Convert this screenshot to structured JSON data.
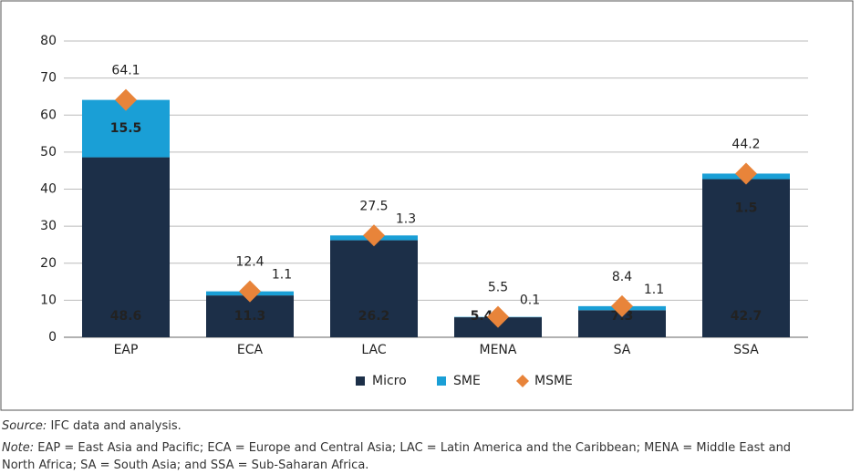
{
  "chart_data": {
    "type": "bar",
    "categories": [
      "EAP",
      "ECA",
      "LAC",
      "MENA",
      "SA",
      "SSA"
    ],
    "series": [
      {
        "name": "Micro",
        "color": "#1c2f48",
        "values": [
          48.6,
          11.3,
          26.2,
          5.4,
          7.3,
          42.7
        ]
      },
      {
        "name": "SME",
        "color": "#1a9fd6",
        "values": [
          15.5,
          1.1,
          1.3,
          0.1,
          1.1,
          1.5
        ]
      },
      {
        "name": "MSME",
        "color": "#e8843a",
        "marker": "diamond",
        "values": [
          64.1,
          12.4,
          27.5,
          5.5,
          8.4,
          44.2
        ]
      }
    ],
    "ylim": [
      0,
      80
    ],
    "yticks": [
      0,
      10,
      20,
      30,
      40,
      50,
      60,
      70,
      80
    ],
    "grid": true,
    "legend": "bottom"
  },
  "source": {
    "label": "Source:",
    "text": "IFC data and analysis."
  },
  "note": {
    "label": "Note:",
    "text": "EAP = East Asia and Pacific; ECA = Europe and Central Asia; LAC = Latin America and the Caribbean; MENA = Middle East and North Africa; SA = South Asia; and SSA = Sub-Saharan Africa."
  }
}
